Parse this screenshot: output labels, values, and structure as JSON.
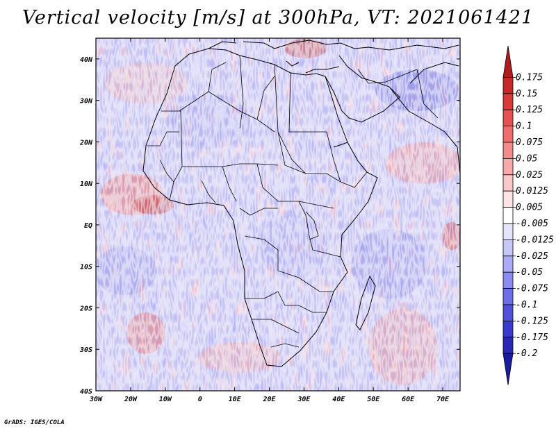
{
  "title": "Vertical velocity [m/s] at 300hPa, VT: 2021061421",
  "credit": "GrADS: IGES/COLA",
  "chart_data": {
    "type": "heatmap",
    "variable": "Vertical velocity",
    "units": "m/s",
    "level": "300hPa",
    "valid_time": "2021061421",
    "lon_range": [
      -30,
      75
    ],
    "lat_range": [
      -40,
      45
    ],
    "lat_ticks": [
      {
        "value": 40,
        "label": "40N"
      },
      {
        "value": 30,
        "label": "30N"
      },
      {
        "value": 20,
        "label": "20N"
      },
      {
        "value": 10,
        "label": "10N"
      },
      {
        "value": 0,
        "label": "EQ"
      },
      {
        "value": -10,
        "label": "10S"
      },
      {
        "value": -20,
        "label": "20S"
      },
      {
        "value": -30,
        "label": "30S"
      },
      {
        "value": -40,
        "label": "40S"
      }
    ],
    "lon_ticks": [
      {
        "value": -30,
        "label": "30W"
      },
      {
        "value": -20,
        "label": "20W"
      },
      {
        "value": -10,
        "label": "10W"
      },
      {
        "value": 0,
        "label": "0"
      },
      {
        "value": 10,
        "label": "10E"
      },
      {
        "value": 20,
        "label": "20E"
      },
      {
        "value": 30,
        "label": "30E"
      },
      {
        "value": 40,
        "label": "40E"
      },
      {
        "value": 50,
        "label": "50E"
      },
      {
        "value": 60,
        "label": "60E"
      },
      {
        "value": 70,
        "label": "70E"
      }
    ],
    "colorbar": {
      "labels": [
        "0.175",
        "0.15",
        "0.125",
        "0.1",
        "0.075",
        "0.05",
        "0.025",
        "0.0125",
        "0.005",
        "-0.005",
        "-0.0125",
        "-0.025",
        "-0.05",
        "-0.075",
        "-0.1",
        "-0.125",
        "-0.175",
        "-0.2"
      ],
      "colors": [
        "#b01c1c",
        "#c82828",
        "#d83a3a",
        "#e65252",
        "#ee6e6e",
        "#f28c8c",
        "#f6aaaa",
        "#f9c8c8",
        "#fce4e4",
        "#ffffff",
        "#e4e4fc",
        "#c8c8f8",
        "#aaaaf6",
        "#8c8cf0",
        "#6e6ee8",
        "#5050dc",
        "#3a3acc",
        "#2828b4",
        "#1a1aa0"
      ]
    }
  }
}
